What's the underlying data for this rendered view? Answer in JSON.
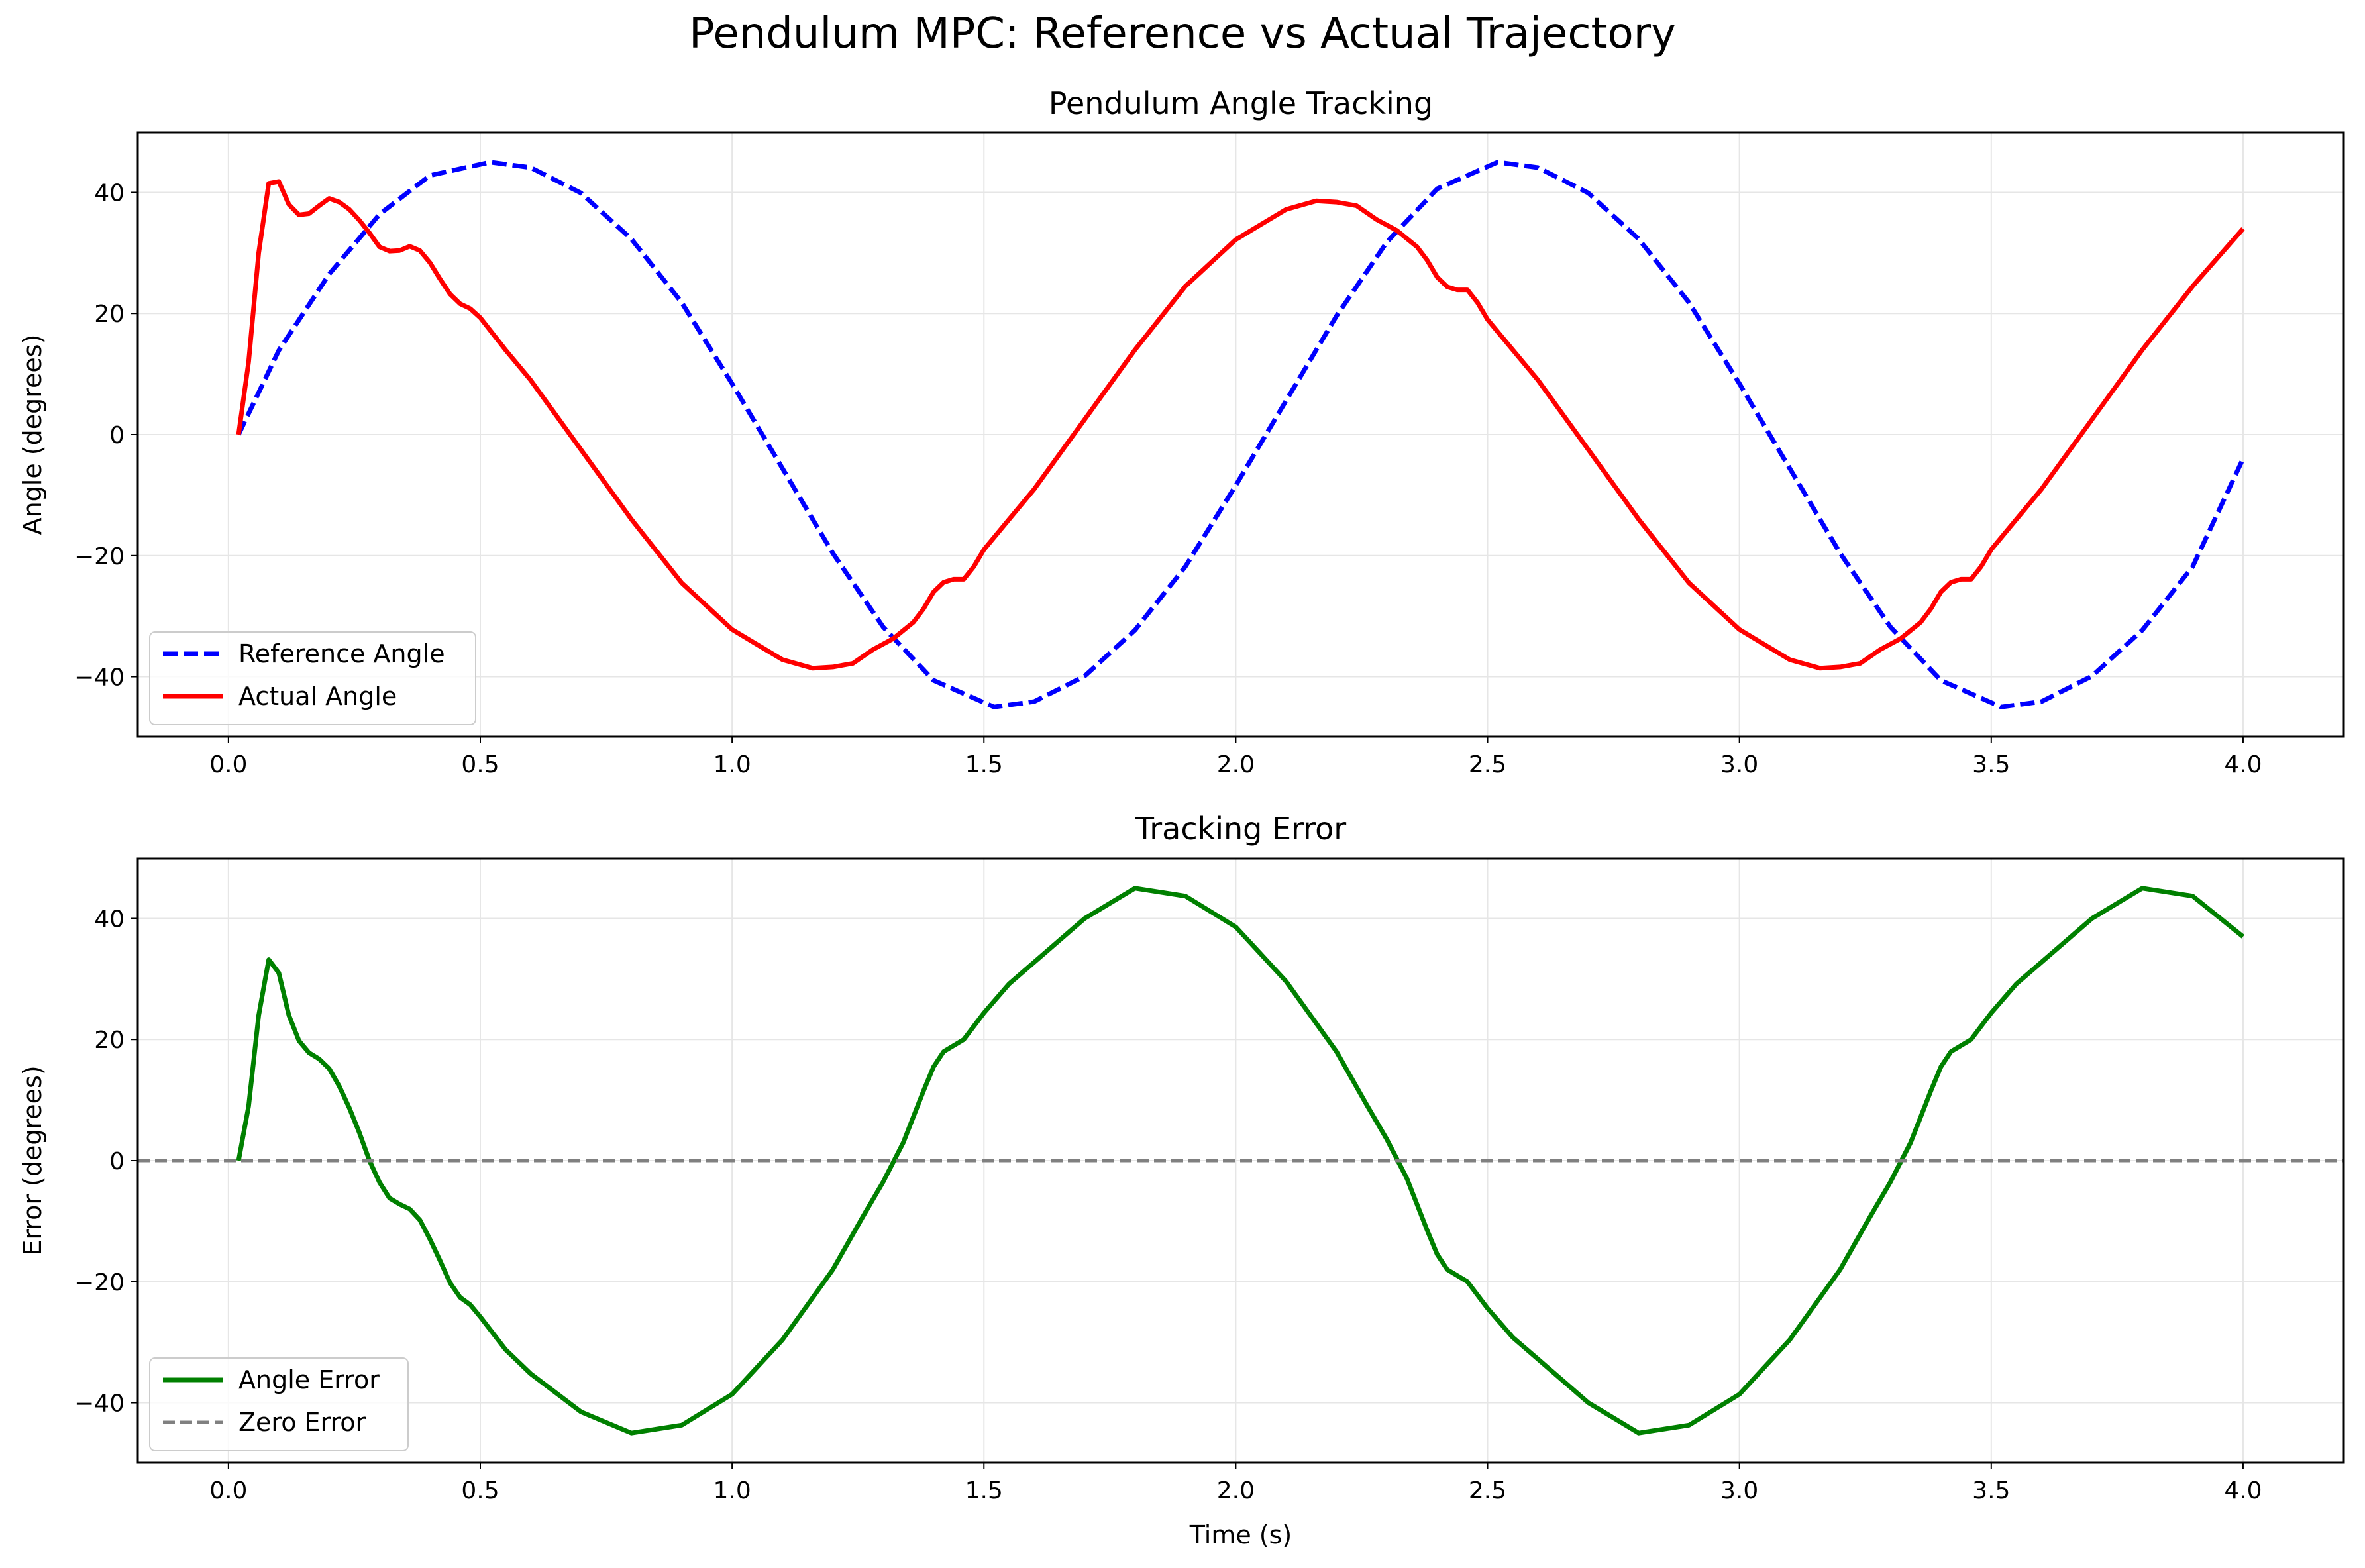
{
  "figure": {
    "title": "Pendulum MPC: Reference vs Actual Trajectory"
  },
  "chart_data": [
    {
      "type": "line",
      "title": "Pendulum Angle Tracking",
      "xlabel": "",
      "ylabel": "Angle (degrees)",
      "xlim": [
        -0.18,
        4.2
      ],
      "ylim": [
        -49.9,
        49.9
      ],
      "xticks": [
        0.0,
        0.5,
        1.0,
        1.5,
        2.0,
        2.5,
        3.0,
        3.5,
        4.0
      ],
      "xtick_labels": [
        "0.0",
        "0.5",
        "1.0",
        "1.5",
        "2.0",
        "2.5",
        "3.0",
        "3.5",
        "4.0"
      ],
      "yticks": [
        -40,
        -20,
        0,
        20,
        40
      ],
      "ytick_labels": [
        "−40",
        "−20",
        "0",
        "20",
        "40"
      ],
      "grid": true,
      "legend": "lower-left",
      "series": [
        {
          "name": "Reference Angle",
          "color": "#0000ff",
          "style": "dashed",
          "x": [
            0.02,
            0.1,
            0.2,
            0.3,
            0.4,
            0.52,
            0.6,
            0.7,
            0.8,
            0.9,
            1.0,
            1.1,
            1.2,
            1.3,
            1.4,
            1.52,
            1.6,
            1.7,
            1.8,
            1.9,
            2.0,
            2.1,
            2.2,
            2.3,
            2.4,
            2.52,
            2.6,
            2.7,
            2.8,
            2.9,
            3.0,
            3.1,
            3.2,
            3.3,
            3.4,
            3.52,
            3.6,
            3.7,
            3.8,
            3.9,
            4.0
          ],
          "y": [
            0,
            13.9,
            26.5,
            36.4,
            42.8,
            45,
            44.1,
            39.9,
            32.3,
            21.8,
            8.4,
            -5.6,
            -19.6,
            -31.8,
            -40.6,
            -45,
            -44.1,
            -39.9,
            -32.3,
            -21.8,
            -8.4,
            5.6,
            19.6,
            31.8,
            40.6,
            45,
            44.1,
            39.9,
            32.3,
            21.8,
            8.4,
            -5.6,
            -19.6,
            -31.8,
            -40.6,
            -45,
            -44.1,
            -39.9,
            -32.3,
            -21.8,
            -4
          ]
        },
        {
          "name": "Actual Angle",
          "color": "#ff0000",
          "style": "solid",
          "x": [
            0.02,
            0.04,
            0.06,
            0.08,
            0.1,
            0.12,
            0.14,
            0.16,
            0.18,
            0.2,
            0.22,
            0.24,
            0.26,
            0.28,
            0.3,
            0.32,
            0.34,
            0.36,
            0.38,
            0.4,
            0.42,
            0.44,
            0.46,
            0.48,
            0.5,
            0.55,
            0.6,
            0.7,
            0.8,
            0.9,
            1.0,
            1.1,
            1.16,
            1.2,
            1.24,
            1.28,
            1.32,
            1.36,
            1.38,
            1.4,
            1.42,
            1.44,
            1.46,
            1.48,
            1.5,
            1.55,
            1.6,
            1.7,
            1.8,
            1.9,
            2.0,
            2.1,
            2.16,
            2.2,
            2.24,
            2.28,
            2.32,
            2.36,
            2.38,
            2.4,
            2.42,
            2.44,
            2.46,
            2.48,
            2.5,
            2.55,
            2.6,
            2.7,
            2.8,
            2.9,
            3.0,
            3.1,
            3.16,
            3.2,
            3.24,
            3.28,
            3.32,
            3.36,
            3.38,
            3.4,
            3.42,
            3.44,
            3.46,
            3.48,
            3.5,
            3.55,
            3.6,
            3.7,
            3.8,
            3.9,
            4.0
          ],
          "y": [
            0,
            12,
            30,
            41.5,
            41.8,
            38,
            36.3,
            36.5,
            37.8,
            39,
            38.4,
            37.2,
            35.4,
            33.3,
            31,
            30.3,
            30.4,
            31.1,
            30.4,
            28.4,
            25.7,
            23.2,
            21.6,
            20.8,
            19.3,
            14,
            9,
            -2.5,
            -14,
            -24.5,
            -32.2,
            -37.2,
            -38.6,
            -38.4,
            -37.8,
            -35.5,
            -33.7,
            -31,
            -28.8,
            -26,
            -24.4,
            -23.9,
            -23.9,
            -21.8,
            -19,
            -14,
            -9,
            2.5,
            14,
            24.5,
            32.2,
            37.2,
            38.6,
            38.4,
            37.8,
            35.5,
            33.7,
            31,
            28.8,
            26,
            24.4,
            23.9,
            23.9,
            21.8,
            19,
            14,
            9,
            -2.5,
            -14,
            -24.5,
            -32.2,
            -37.2,
            -38.6,
            -38.4,
            -37.8,
            -35.5,
            -33.7,
            -31,
            -28.8,
            -26,
            -24.4,
            -23.9,
            -23.9,
            -21.8,
            -19,
            -14,
            -9,
            2.5,
            14,
            24.5,
            34
          ]
        }
      ]
    },
    {
      "type": "line",
      "title": "Tracking Error",
      "xlabel": "Time (s)",
      "ylabel": "Error (degrees)",
      "xlim": [
        -0.18,
        4.2
      ],
      "ylim": [
        -49.9,
        49.9
      ],
      "xticks": [
        0.0,
        0.5,
        1.0,
        1.5,
        2.0,
        2.5,
        3.0,
        3.5,
        4.0
      ],
      "xtick_labels": [
        "0.0",
        "0.5",
        "1.0",
        "1.5",
        "2.0",
        "2.5",
        "3.0",
        "3.5",
        "4.0"
      ],
      "yticks": [
        -40,
        -20,
        0,
        20,
        40
      ],
      "ytick_labels": [
        "−40",
        "−20",
        "0",
        "20",
        "40"
      ],
      "grid": true,
      "legend": "lower-left",
      "series": [
        {
          "name": "Angle Error",
          "color": "#008000",
          "style": "solid",
          "x": [
            0.02,
            0.04,
            0.06,
            0.08,
            0.1,
            0.12,
            0.14,
            0.16,
            0.18,
            0.2,
            0.22,
            0.24,
            0.26,
            0.28,
            0.3,
            0.32,
            0.34,
            0.36,
            0.38,
            0.4,
            0.42,
            0.44,
            0.46,
            0.48,
            0.5,
            0.55,
            0.6,
            0.7,
            0.8,
            0.9,
            1.0,
            1.1,
            1.2,
            1.26,
            1.3,
            1.34,
            1.38,
            1.4,
            1.42,
            1.44,
            1.46,
            1.5,
            1.55,
            1.6,
            1.7,
            1.8,
            1.9,
            2.0,
            2.1,
            2.2,
            2.26,
            2.3,
            2.34,
            2.38,
            2.4,
            2.42,
            2.44,
            2.46,
            2.5,
            2.55,
            2.6,
            2.7,
            2.8,
            2.9,
            3.0,
            3.1,
            3.2,
            3.26,
            3.3,
            3.34,
            3.38,
            3.4,
            3.42,
            3.44,
            3.46,
            3.5,
            3.55,
            3.6,
            3.7,
            3.8,
            3.9,
            4.0
          ],
          "y": [
            0,
            9,
            24,
            33.2,
            31,
            24,
            19.8,
            17.8,
            16.8,
            15.2,
            12.3,
            8.7,
            4.6,
            0,
            -3.6,
            -6.2,
            -7.2,
            -8,
            -9.8,
            -13,
            -16.5,
            -20.2,
            -22.6,
            -23.8,
            -25.8,
            -31.2,
            -35.2,
            -41.5,
            -45,
            -43.7,
            -38.6,
            -29.6,
            -18,
            -9.2,
            -3.5,
            3,
            11.5,
            15.5,
            18,
            19,
            20,
            24.4,
            29.2,
            32.8,
            40,
            45,
            43.7,
            38.6,
            29.6,
            18,
            9.2,
            3.5,
            -3,
            -11.5,
            -15.5,
            -18,
            -19,
            -20,
            -24.4,
            -29.2,
            -32.8,
            -40,
            -45,
            -43.7,
            -38.6,
            -29.6,
            -18,
            -9.2,
            -3.5,
            3,
            11.5,
            15.5,
            18,
            19,
            20,
            24.4,
            29.2,
            32.8,
            40,
            45,
            43.7,
            37
          ]
        },
        {
          "name": "Zero Error",
          "color": "#808080",
          "style": "dashed",
          "x": [
            -0.18,
            4.2
          ],
          "y": [
            0,
            0
          ]
        }
      ]
    }
  ]
}
